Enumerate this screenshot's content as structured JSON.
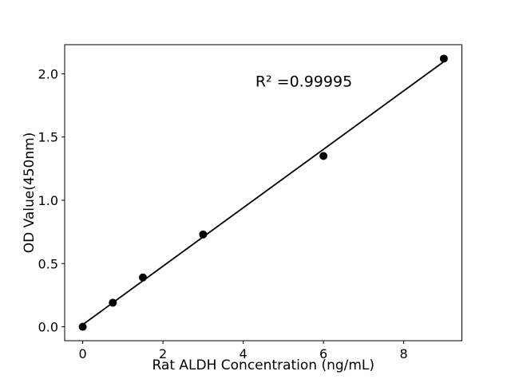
{
  "figure": {
    "background": "#ffffff"
  },
  "chart_data": {
    "type": "scatter",
    "title": "",
    "xlabel": "Rat ALDH Concentration (ng/mL)",
    "ylabel": "OD Value(450nm)",
    "x": [
      0,
      0.75,
      1.5,
      3,
      6,
      9
    ],
    "y": [
      0.0,
      0.19,
      0.39,
      0.73,
      1.35,
      2.12
    ],
    "fit_line": {
      "slope": 0.231,
      "intercept": 0.017,
      "x_start": 0,
      "x_end": 9
    },
    "annotation": {
      "text": "R² =0.99995",
      "x": 5.51,
      "y": 1.9
    },
    "x_ticks": {
      "values": [
        0,
        2,
        4,
        6,
        8
      ],
      "labels": [
        "0",
        "2",
        "4",
        "6",
        "8"
      ]
    },
    "y_ticks": {
      "values": [
        0.0,
        0.5,
        1.0,
        1.5,
        2.0
      ],
      "labels": [
        "0.0",
        "0.5",
        "1.0",
        "1.5",
        "2.0"
      ]
    },
    "xlim": [
      -0.45,
      9.45
    ],
    "ylim": [
      -0.11,
      2.23
    ],
    "grid": false,
    "legend": null,
    "marker_color": "#000000",
    "line_color": "#000000",
    "axis_color": "#000000"
  }
}
